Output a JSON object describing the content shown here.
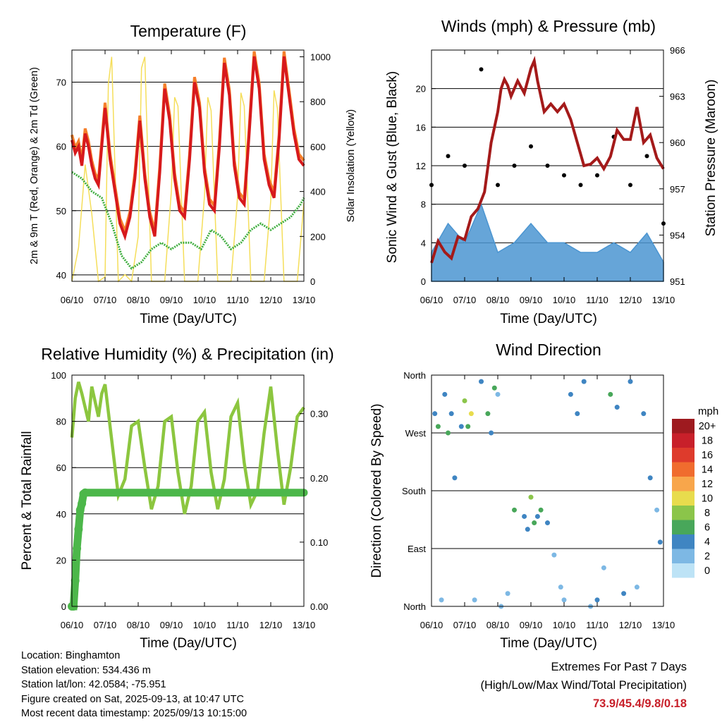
{
  "charts": {
    "temperature": {
      "title": "Temperature (F)",
      "xlabel": "Time (Day/UTC)",
      "ylabel": "2m & 9m T (Red, Orange) & 2m Td (Green)",
      "y2label": "Solar Insolation (Yellow)"
    },
    "winds": {
      "title": "Winds (mph) & Pressure (mb)",
      "xlabel": "Time (Day/UTC)",
      "ylabel": "Sonic Wind & Gust (Blue, Black)",
      "y2label": "Station Pressure (Maroon)"
    },
    "humidity": {
      "title": "Relative Humidity (%) & Precipitation (in)",
      "xlabel": "Time (Day/UTC)",
      "ylabel": "Percent & Total Rainfall"
    },
    "direction": {
      "title": "Wind Direction",
      "xlabel": "Time (Day/UTC)",
      "ylabel": "Direction (Colored By Speed)",
      "legend_title": "mph"
    }
  },
  "info": {
    "location": "Location: Binghamton",
    "elevation": "Station elevation: 534.436 m",
    "latlon": "Station lat/lon: 42.0584; -75.951",
    "created": "Figure created on Sat, 2025-09-13, at 10:47 UTC",
    "recent": "Most recent data timestamp: 2025/09/13 10:15:00"
  },
  "extremes": {
    "heading": "Extremes For Past 7 Days",
    "subheading": "(High/Low/Max Wind/Total Precipitation)",
    "values": "73.9/45.4/9.8/0.18"
  },
  "colors": {
    "temp2m": "#d7191c",
    "temp9m": "#f57f2a",
    "dewpoint": "#3fae3f",
    "solar": "#f5de5a",
    "wind": "#4b95d1",
    "gust": "#000000",
    "pressure": "#a41a1a",
    "rh": "#8cc63f",
    "precip": "#4cb74a"
  },
  "chart_data": [
    {
      "type": "line",
      "title": "Temperature (F)",
      "xlabel": "Time (Day/UTC)",
      "ylabel": "2m & 9m T (Red, Orange) & 2m Td (Green)",
      "y2label": "Solar Insolation (Yellow)",
      "x_ticks": [
        "06/10",
        "07/10",
        "08/10",
        "09/10",
        "10/10",
        "11/10",
        "12/10",
        "13/10"
      ],
      "ylim": [
        39,
        75
      ],
      "yticks": [
        40,
        50,
        60,
        70
      ],
      "y2lim": [
        0,
        1030
      ],
      "y2ticks": [
        0,
        200,
        400,
        600,
        800,
        1000
      ],
      "grid": true,
      "series": [
        {
          "axis": "y",
          "x": [
            0,
            0.1,
            0.2,
            0.3,
            0.4,
            0.5,
            0.6,
            0.7,
            0.8,
            1.0,
            1.15,
            1.3,
            1.45,
            1.6,
            1.75,
            1.9,
            2.05,
            2.2,
            2.35,
            2.5,
            2.65,
            2.8,
            2.95,
            3.1,
            3.25,
            3.4,
            3.55,
            3.7,
            3.85,
            4.0,
            4.15,
            4.3,
            4.45,
            4.6,
            4.75,
            4.9,
            5.05,
            5.2,
            5.35,
            5.5,
            5.65,
            5.8,
            5.95,
            6.1,
            6.25,
            6.4,
            6.55,
            6.7,
            6.85,
            7.0
          ],
          "values": [
            61,
            59,
            60,
            57,
            62,
            60,
            57,
            55,
            54,
            66,
            58,
            53,
            48,
            46,
            49,
            55,
            64,
            55,
            49,
            46,
            56,
            69,
            64,
            55,
            50,
            49,
            58,
            70,
            66,
            56,
            51,
            50,
            60,
            73,
            68,
            57,
            52,
            51,
            62,
            74,
            69,
            58,
            54,
            52,
            61,
            74,
            68,
            62,
            58,
            57
          ]
        },
        {
          "axis": "y",
          "x": [
            0,
            0.3,
            0.6,
            0.9,
            1.2,
            1.5,
            1.8,
            2.1,
            2.4,
            2.7,
            3.0,
            3.3,
            3.6,
            3.9,
            4.2,
            4.5,
            4.8,
            5.1,
            5.4,
            5.7,
            6.0,
            6.3,
            6.6,
            6.9,
            7.0
          ],
          "values": [
            56,
            55,
            53,
            52,
            48,
            43,
            41,
            42,
            44,
            45,
            44,
            45,
            45,
            44,
            47,
            46,
            44,
            45,
            47,
            48,
            47,
            48,
            49,
            51,
            52
          ]
        },
        {
          "axis": "y2",
          "x": [
            0,
            0.2,
            0.4,
            0.6,
            0.8,
            1.0,
            1.1,
            1.2,
            1.4,
            1.6,
            1.8,
            2.0,
            2.1,
            2.2,
            2.4,
            2.6,
            2.8,
            3.0,
            3.1,
            3.2,
            3.4,
            3.6,
            3.8,
            4.0,
            4.1,
            4.2,
            4.4,
            4.6,
            4.8,
            5.0,
            5.1,
            5.2,
            5.4,
            5.6,
            5.8,
            6.0,
            6.1,
            6.2,
            6.4,
            6.6,
            6.8,
            7.0
          ],
          "values": [
            0,
            150,
            520,
            300,
            0,
            20,
            880,
            1000,
            0,
            30,
            0,
            200,
            950,
            1000,
            0,
            0,
            0,
            400,
            820,
            780,
            0,
            0,
            0,
            380,
            820,
            760,
            0,
            0,
            0,
            380,
            840,
            780,
            0,
            0,
            0,
            360,
            850,
            770,
            0,
            0,
            0,
            350
          ]
        }
      ]
    },
    {
      "type": "line",
      "title": "Winds (mph) & Pressure (mb)",
      "xlabel": "Time (Day/UTC)",
      "ylabel": "Sonic Wind & Gust (Blue, Black)",
      "y2label": "Station Pressure (Maroon)",
      "x_ticks": [
        "06/10",
        "07/10",
        "08/10",
        "09/10",
        "10/10",
        "11/10",
        "12/10",
        "13/10"
      ],
      "ylim": [
        0,
        24
      ],
      "yticks": [
        0,
        4,
        8,
        12,
        16,
        20
      ],
      "y2lim": [
        951,
        966
      ],
      "y2ticks": [
        951,
        954,
        957,
        960,
        963,
        966
      ],
      "grid": true,
      "series": [
        {
          "axis": "y2",
          "x": [
            0,
            0.2,
            0.4,
            0.6,
            0.8,
            1.0,
            1.2,
            1.4,
            1.6,
            1.8,
            2.0,
            2.1,
            2.2,
            2.3,
            2.4,
            2.6,
            2.8,
            3.0,
            3.1,
            3.2,
            3.4,
            3.6,
            3.8,
            4.0,
            4.2,
            4.4,
            4.6,
            4.8,
            5.0,
            5.2,
            5.4,
            5.6,
            5.8,
            6.0,
            6.2,
            6.4,
            6.6,
            6.8,
            7.0
          ],
          "values": [
            952.2,
            953.6,
            952.9,
            952.5,
            953.9,
            953.7,
            955.2,
            955.7,
            956.8,
            960.0,
            962.0,
            963.5,
            964.1,
            963.7,
            963.0,
            964.0,
            963.2,
            964.8,
            965.3,
            964.0,
            962.0,
            962.5,
            962.0,
            962.5,
            961.5,
            960.0,
            958.5,
            958.6,
            959.0,
            958.3,
            959.1,
            960.8,
            960.2,
            960.2,
            962.3,
            960.0,
            960.5,
            959.0,
            958.3
          ]
        },
        {
          "axis": "y",
          "x": [
            0,
            0.5,
            1.0,
            1.5,
            2.0,
            2.5,
            3.0,
            3.5,
            4.0,
            4.5,
            5.0,
            5.5,
            6.0,
            6.5,
            7.0
          ],
          "values": [
            3,
            6,
            4,
            8,
            3,
            4,
            6,
            4,
            4,
            3,
            3,
            4,
            3,
            5,
            2
          ]
        },
        {
          "axis": "y",
          "x": [
            0,
            0.5,
            1.0,
            1.5,
            2.0,
            2.5,
            3.0,
            3.5,
            4.0,
            4.5,
            5.0,
            5.5,
            6.0,
            6.5,
            7.0
          ],
          "values": [
            10,
            13,
            12,
            22,
            10,
            12,
            14,
            12,
            11,
            10,
            11,
            15,
            10,
            13,
            6
          ]
        }
      ]
    },
    {
      "type": "line",
      "title": "Relative Humidity (%) & Precipitation (in)",
      "xlabel": "Time (Day/UTC)",
      "ylabel": "Percent & Total Rainfall",
      "x_ticks": [
        "06/10",
        "07/10",
        "08/10",
        "09/10",
        "10/10",
        "11/10",
        "12/10",
        "13/10"
      ],
      "ylim": [
        0,
        100
      ],
      "yticks": [
        0,
        20,
        40,
        60,
        80,
        100
      ],
      "y2lim": [
        0,
        0.36
      ],
      "y2ticks": [
        0.0,
        0.1,
        0.2,
        0.3
      ],
      "y2tick_labels": [
        "0.00",
        "0.10",
        "0.20",
        "0.30"
      ],
      "grid": true,
      "series": [
        {
          "axis": "y",
          "x": [
            0,
            0.1,
            0.2,
            0.3,
            0.5,
            0.6,
            0.8,
            0.9,
            1.0,
            1.2,
            1.4,
            1.6,
            1.8,
            2.0,
            2.2,
            2.4,
            2.6,
            2.8,
            3.0,
            3.2,
            3.4,
            3.6,
            3.8,
            4.0,
            4.2,
            4.4,
            4.6,
            4.8,
            5.0,
            5.2,
            5.4,
            5.6,
            5.8,
            6.0,
            6.2,
            6.4,
            6.6,
            6.8,
            7.0
          ],
          "values": [
            73,
            90,
            97,
            92,
            80,
            95,
            82,
            92,
            96,
            72,
            48,
            55,
            78,
            80,
            60,
            42,
            52,
            80,
            82,
            58,
            40,
            52,
            80,
            84,
            58,
            42,
            55,
            82,
            88,
            62,
            44,
            50,
            75,
            95,
            68,
            44,
            60,
            82,
            86
          ]
        },
        {
          "axis": "y2",
          "x": [
            0,
            0.05,
            0.1,
            0.15,
            0.2,
            0.25,
            0.3,
            0.35,
            0.4,
            7.0
          ],
          "values": [
            0.0,
            0.0,
            0.04,
            0.09,
            0.12,
            0.15,
            0.16,
            0.175,
            0.177,
            0.177
          ]
        }
      ]
    },
    {
      "type": "scatter",
      "title": "Wind Direction",
      "xlabel": "Time (Day/UTC)",
      "ylabel": "Direction (Colored By Speed)",
      "x_ticks": [
        "06/10",
        "07/10",
        "08/10",
        "09/10",
        "10/10",
        "11/10",
        "12/10",
        "13/10"
      ],
      "ylim": [
        0,
        360
      ],
      "ytick_labels": [
        "North",
        "East",
        "South",
        "West",
        "North"
      ],
      "grid": true,
      "color_scale": {
        "title": "mph",
        "labels": [
          "20+",
          "18",
          "16",
          "14",
          "12",
          "10",
          "8",
          "6",
          "4",
          "2",
          "0"
        ],
        "colors": [
          "#9e1a1f",
          "#c8202a",
          "#de3b2c",
          "#f06c2e",
          "#f8a64b",
          "#e8dc4d",
          "#8bc54a",
          "#48a75a",
          "#3f85c2",
          "#7db8e4",
          "#bde3f6"
        ]
      },
      "series": [
        {
          "name": "",
          "x": [
            0.1,
            0.2,
            0.3,
            0.4,
            0.5,
            0.6,
            0.7,
            0.9,
            1.0,
            1.1,
            1.2,
            1.3,
            1.5,
            1.7,
            1.8,
            1.9,
            2.0,
            2.1,
            2.3,
            2.5,
            2.8,
            2.9,
            3.0,
            3.1,
            3.2,
            3.3,
            3.5,
            3.7,
            3.9,
            4.0,
            4.2,
            4.4,
            4.6,
            4.8,
            5.0,
            5.2,
            5.4,
            5.6,
            5.8,
            6.0,
            6.2,
            6.4,
            6.6,
            6.8,
            6.9
          ],
          "values": [
            300,
            280,
            10,
            330,
            270,
            300,
            200,
            280,
            320,
            280,
            300,
            10,
            350,
            300,
            270,
            340,
            330,
            0,
            20,
            150,
            140,
            120,
            170,
            130,
            140,
            150,
            130,
            80,
            30,
            10,
            330,
            300,
            350,
            0,
            10,
            60,
            330,
            310,
            20,
            350,
            30,
            300,
            200,
            150,
            100
          ],
          "speeds": [
            3,
            5,
            2,
            4,
            6,
            3,
            4,
            3,
            8,
            6,
            10,
            2,
            4,
            5,
            3,
            6,
            2,
            1,
            2,
            5,
            4,
            3,
            8,
            6,
            4,
            5,
            3,
            2,
            2,
            1,
            4,
            3,
            3,
            2,
            3,
            2,
            5,
            4,
            3,
            3,
            2,
            4,
            3,
            2,
            3
          ]
        }
      ]
    }
  ]
}
